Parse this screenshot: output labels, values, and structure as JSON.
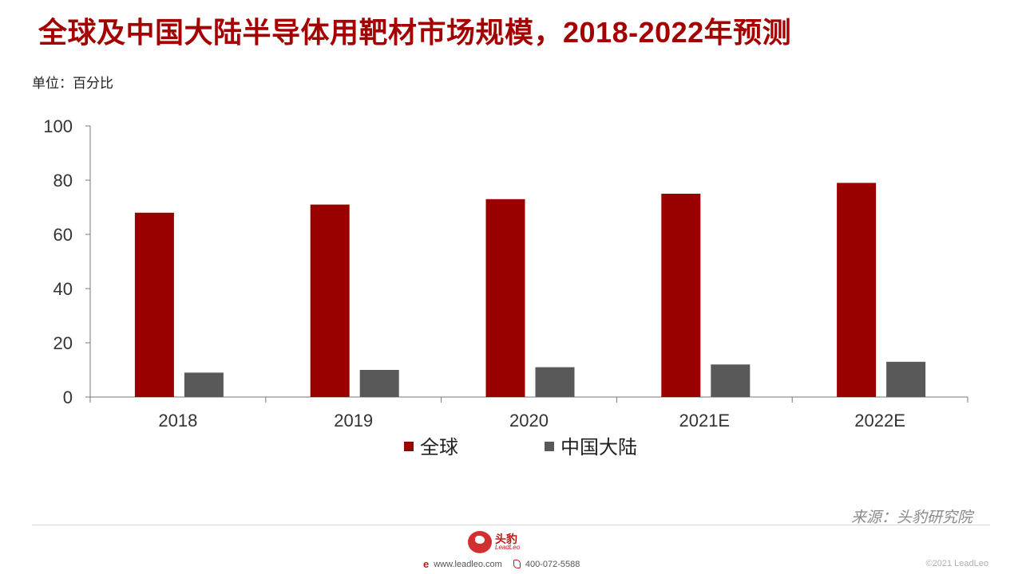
{
  "title": "全球及中国大陆半导体用靶材市场规模，2018-2022年预测",
  "unit_label": "单位：百分比",
  "chart_data": {
    "type": "bar",
    "categories": [
      "2018",
      "2019",
      "2020",
      "2021E",
      "2022E"
    ],
    "series": [
      {
        "name": "全球",
        "values": [
          68,
          71,
          73,
          75,
          79
        ],
        "color": "#990000"
      },
      {
        "name": "中国大陆",
        "values": [
          9,
          10,
          11,
          12,
          13
        ],
        "color": "#595959"
      }
    ],
    "ylim": [
      0,
      100
    ],
    "yticks": [
      0,
      20,
      40,
      60,
      80,
      100
    ],
    "grid": false,
    "legend_position": "bottom"
  },
  "footer": {
    "source": "来源：头豹研究院",
    "brand_cn": "头豹",
    "brand_en": "LeadLeo",
    "website": "www.leadleo.com",
    "phone": "400-072-5588",
    "copyright": "©2021 LeadLeo"
  },
  "colors": {
    "title": "#a50000",
    "global_series": "#990000",
    "china_series": "#595959"
  }
}
